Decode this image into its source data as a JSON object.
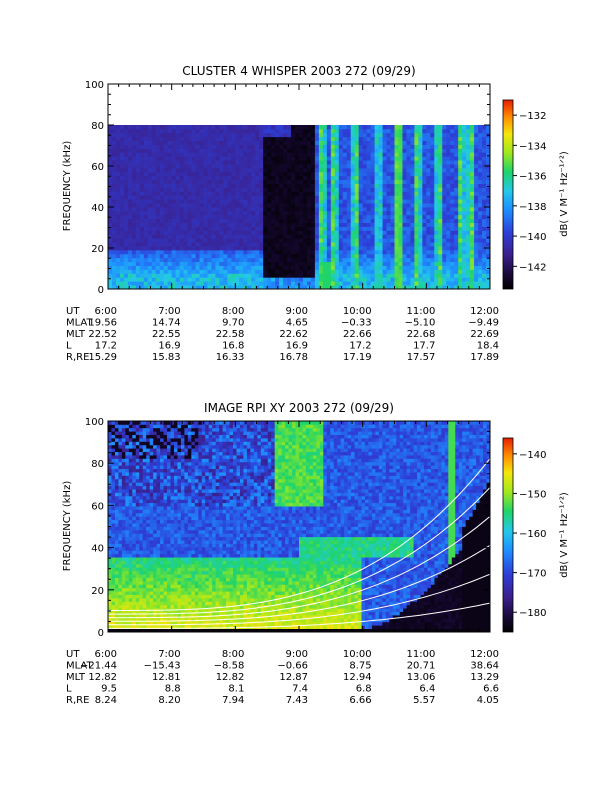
{
  "chart_data": [
    {
      "type": "heatmap",
      "title": "CLUSTER 4 WHISPER 2003 272 (09/29)",
      "ylabel": "FREQUENCY (kHz)",
      "ylim": [
        0,
        100
      ],
      "yticks": [
        "0",
        "20",
        "40",
        "60",
        "80",
        "100"
      ],
      "data_ceiling_khz": 80,
      "colorbar": {
        "label": "dB( V M⁻¹ Hz⁻¹ᐟ²)",
        "range": [
          -143.5,
          -131
        ],
        "ticks": [
          "-132",
          "-134",
          "-136",
          "-138",
          "-140",
          "-142"
        ]
      },
      "xticks": [
        "6:00",
        "7:00",
        "8:00",
        "9:00",
        "10:00",
        "11:00",
        "12:00"
      ],
      "ephemeris": [
        {
          "label": "UT",
          "values": [
            "6:00",
            "7:00",
            "8:00",
            "9:00",
            "10:00",
            "11:00",
            "12:00"
          ]
        },
        {
          "label": "MLAT",
          "values": [
            "19.56",
            "14.74",
            "9.70",
            "4.65",
            "−0.33",
            "−5.10",
            "−9.49"
          ]
        },
        {
          "label": "MLT",
          "values": [
            "22.52",
            "22.55",
            "22.58",
            "22.62",
            "22.66",
            "22.68",
            "22.69"
          ]
        },
        {
          "label": "L",
          "values": [
            "17.2",
            "16.9",
            "16.8",
            "16.9",
            "17.2",
            "17.7",
            "18.4"
          ]
        },
        {
          "label": "R,RE",
          "values": [
            "15.29",
            "15.83",
            "16.33",
            "16.78",
            "17.19",
            "17.57",
            "17.89"
          ]
        }
      ]
    },
    {
      "type": "heatmap",
      "title": "IMAGE RPI XY 2003 272 (09/29)",
      "ylabel": "FREQUENCY (kHz)",
      "ylim": [
        0,
        100
      ],
      "yticks": [
        "0",
        "20",
        "40",
        "60",
        "80",
        "100"
      ],
      "colorbar": {
        "label": "dB( V M⁻¹ Hz⁻¹ᐟ²)",
        "range": [
          -185,
          -136
        ],
        "ticks": [
          "-140",
          "-150",
          "-160",
          "-170",
          "-180"
        ]
      },
      "xticks": [
        "6:00",
        "7:00",
        "8:00",
        "9:00",
        "10:00",
        "11:00",
        "12:00"
      ],
      "ephemeris": [
        {
          "label": "UT",
          "values": [
            "6:00",
            "7:00",
            "8:00",
            "9:00",
            "10:00",
            "11:00",
            "12:00"
          ]
        },
        {
          "label": "MLAT",
          "values": [
            "−21.44",
            "−15.43",
            "−8.58",
            "−0.66",
            "8.75",
            "20.71",
            "38.64"
          ]
        },
        {
          "label": "MLT",
          "values": [
            "12.82",
            "12.81",
            "12.82",
            "12.87",
            "12.94",
            "13.06",
            "13.29"
          ]
        },
        {
          "label": "L",
          "values": [
            "9.5",
            "8.8",
            "8.1",
            "7.4",
            "6.8",
            "6.4",
            "6.6"
          ]
        },
        {
          "label": "R,RE",
          "values": [
            "8.24",
            "8.20",
            "7.94",
            "7.43",
            "6.66",
            "5.57",
            "4.05"
          ]
        }
      ]
    }
  ]
}
